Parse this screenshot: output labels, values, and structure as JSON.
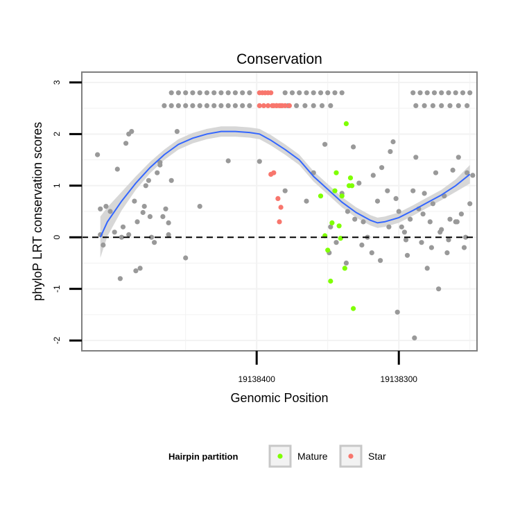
{
  "chart_data": {
    "type": "scatter",
    "title": "Conservation",
    "xlabel": "Genomic Position",
    "ylabel": "phyloP LRT conservation scores",
    "x_reversed": true,
    "xlim": [
      19138523,
      19138245
    ],
    "ylim": [
      -2.2,
      3.2
    ],
    "x_ticks": [
      19138400,
      19138300
    ],
    "x_tick_labels": [
      "19138400",
      "19138300"
    ],
    "y_ticks": [
      -2,
      -1,
      0,
      1,
      2,
      3
    ],
    "y_tick_labels": [
      "-2",
      "-1",
      "0",
      "1",
      "2",
      "3"
    ],
    "grid": true,
    "reference_line": {
      "y": 0,
      "style": "dashed",
      "color": "#000000"
    },
    "colors": {
      "other": "#999999",
      "Mature": "#7FFF00",
      "Star": "#F8766D",
      "smooth_line": "#3366FF",
      "confidence_band": "#D3D3D3",
      "panel_border": "#7F7F7F",
      "grid": "#F2F2F2"
    },
    "smooth": {
      "method": "loess",
      "x": [
        19138510,
        19138505,
        19138495,
        19138485,
        19138475,
        19138465,
        19138455,
        19138445,
        19138435,
        19138425,
        19138415,
        19138405,
        19138398,
        19138390,
        19138380,
        19138370,
        19138360,
        19138350,
        19138340,
        19138330,
        19138320,
        19138315,
        19138310,
        19138300,
        19138290,
        19138280,
        19138270,
        19138260,
        19138250
      ],
      "y": [
        0.0,
        0.3,
        0.7,
        1.05,
        1.35,
        1.6,
        1.8,
        1.92,
        2.0,
        2.05,
        2.05,
        2.03,
        2.0,
        1.88,
        1.7,
        1.5,
        1.18,
        0.93,
        0.68,
        0.48,
        0.33,
        0.28,
        0.3,
        0.38,
        0.52,
        0.67,
        0.82,
        1.0,
        1.22
      ],
      "ci_half_width": [
        0.4,
        0.28,
        0.18,
        0.13,
        0.11,
        0.1,
        0.1,
        0.1,
        0.1,
        0.1,
        0.1,
        0.1,
        0.1,
        0.1,
        0.1,
        0.1,
        0.1,
        0.1,
        0.1,
        0.1,
        0.1,
        0.1,
        0.1,
        0.1,
        0.1,
        0.1,
        0.1,
        0.12,
        0.18
      ]
    },
    "series": [
      {
        "name": "Other",
        "in_legend": false,
        "x": [
          19138512,
          19138510,
          19138508,
          19138506,
          19138503,
          19138500,
          19138498,
          19138496,
          19138494,
          19138492,
          19138490,
          19138488,
          19138486,
          19138484,
          19138482,
          19138480,
          19138478,
          19138476,
          19138474,
          19138472,
          19138470,
          19138468,
          19138466,
          19138464,
          19138462,
          19138460,
          19138456,
          19138450,
          19138440,
          19138420,
          19138398,
          19138380,
          19138365,
          19138360,
          19138352,
          19138348,
          19138340,
          19138336,
          19138332,
          19138328,
          19138325,
          19138322,
          19138318,
          19138315,
          19138312,
          19138308,
          19138306,
          19138304,
          19138302,
          19138300,
          19138298,
          19138296,
          19138294,
          19138292,
          19138290,
          19138288,
          19138286,
          19138284,
          19138282,
          19138280,
          19138278,
          19138276,
          19138274,
          19138272,
          19138270,
          19138268,
          19138266,
          19138264,
          19138262,
          19138260,
          19138258,
          19138256,
          19138254,
          19138252,
          19138250,
          19138248,
          19138349,
          19138344,
          19138337,
          19138331,
          19138326,
          19138319,
          19138313,
          19138307,
          19138301,
          19138295,
          19138289,
          19138283,
          19138277,
          19138271,
          19138265,
          19138259,
          19138253,
          19138510,
          19138495,
          19138490,
          19138485,
          19138479,
          19138475,
          19138468,
          19138462
        ],
        "y": [
          1.6,
          0.05,
          -0.15,
          0.6,
          0.5,
          0.1,
          1.32,
          -0.8,
          0.2,
          1.82,
          2.0,
          2.05,
          0.7,
          0.3,
          -0.6,
          0.48,
          1.0,
          1.1,
          0.0,
          -0.1,
          1.25,
          1.45,
          0.4,
          0.55,
          0.28,
          1.1,
          2.05,
          -0.4,
          0.6,
          1.48,
          1.47,
          0.9,
          0.7,
          1.25,
          1.8,
          0.2,
          0.85,
          0.5,
          1.75,
          1.05,
          0.3,
          0.0,
          1.2,
          0.7,
          1.35,
          0.9,
          1.66,
          1.85,
          0.75,
          0.5,
          0.2,
          0.1,
          -0.35,
          0.35,
          0.9,
          1.55,
          0.55,
          -0.1,
          0.85,
          -0.6,
          0.3,
          0.65,
          1.25,
          -1.0,
          0.15,
          0.8,
          -0.3,
          0.35,
          1.3,
          0.3,
          1.55,
          0.45,
          -0.2,
          1.25,
          0.65,
          1.2,
          -0.3,
          -0.1,
          -0.5,
          0.35,
          -0.15,
          -0.3,
          -0.45,
          0.2,
          -1.45,
          -0.05,
          -1.95,
          0.45,
          -0.2,
          0.1,
          -0.05,
          0.3,
          0.0,
          0.55,
          0.0,
          0.05,
          -0.65,
          0.6,
          0.4,
          1.4,
          0.05
        ]
      },
      {
        "name": "Other (top band upper)",
        "in_legend": false,
        "x": [
          19138460,
          19138455,
          19138450,
          19138445,
          19138440,
          19138435,
          19138430,
          19138425,
          19138420,
          19138415,
          19138410,
          19138405,
          19138380,
          19138375,
          19138370,
          19138365,
          19138360,
          19138355,
          19138350,
          19138345,
          19138340,
          19138290,
          19138285,
          19138280,
          19138275,
          19138270,
          19138265,
          19138260,
          19138255,
          19138250
        ],
        "y": [
          2.8,
          2.8,
          2.8,
          2.8,
          2.8,
          2.8,
          2.8,
          2.8,
          2.8,
          2.8,
          2.8,
          2.8,
          2.8,
          2.8,
          2.8,
          2.8,
          2.8,
          2.8,
          2.8,
          2.8,
          2.8,
          2.8,
          2.8,
          2.8,
          2.8,
          2.8,
          2.8,
          2.8,
          2.8,
          2.8
        ]
      },
      {
        "name": "Other (top band lower)",
        "in_legend": false,
        "x": [
          19138465,
          19138460,
          19138455,
          19138450,
          19138445,
          19138440,
          19138435,
          19138430,
          19138425,
          19138420,
          19138415,
          19138410,
          19138405,
          19138378,
          19138372,
          19138366,
          19138360,
          19138354,
          19138348,
          19138288,
          19138282,
          19138276,
          19138270,
          19138264,
          19138258,
          19138252
        ],
        "y": [
          2.55,
          2.55,
          2.55,
          2.55,
          2.55,
          2.55,
          2.55,
          2.55,
          2.55,
          2.55,
          2.55,
          2.55,
          2.55,
          2.55,
          2.55,
          2.55,
          2.55,
          2.55,
          2.55,
          2.55,
          2.55,
          2.55,
          2.55,
          2.55,
          2.55,
          2.55
        ]
      },
      {
        "name": "Mature",
        "in_legend": true,
        "x": [
          19138355,
          19138352,
          19138350,
          19138348,
          19138347,
          19138345,
          19138344,
          19138342,
          19138341,
          19138340,
          19138338,
          19138337,
          19138335,
          19138334,
          19138333,
          19138332
        ],
        "y": [
          0.8,
          0.03,
          -0.25,
          -0.85,
          0.28,
          0.9,
          1.25,
          0.22,
          -0.02,
          0.8,
          -0.6,
          2.2,
          1.0,
          1.15,
          1.0,
          -1.38
        ]
      },
      {
        "name": "Star",
        "in_legend": true,
        "x": [
          19138398,
          19138396,
          19138394,
          19138392,
          19138390,
          19138388,
          19138386,
          19138384,
          19138382,
          19138398,
          19138395,
          19138392,
          19138389,
          19138386,
          19138383,
          19138380,
          19138377,
          19138390,
          19138388,
          19138385,
          19138383,
          19138384
        ],
        "y": [
          2.8,
          2.8,
          2.8,
          2.8,
          2.8,
          2.55,
          2.55,
          2.55,
          2.55,
          2.55,
          2.55,
          2.55,
          2.55,
          2.55,
          2.55,
          2.55,
          2.55,
          1.22,
          1.25,
          0.75,
          0.58,
          0.3
        ]
      }
    ],
    "legend": {
      "title": "Hairpin partition",
      "position": "bottom",
      "entries": [
        "Mature",
        "Star"
      ]
    }
  }
}
